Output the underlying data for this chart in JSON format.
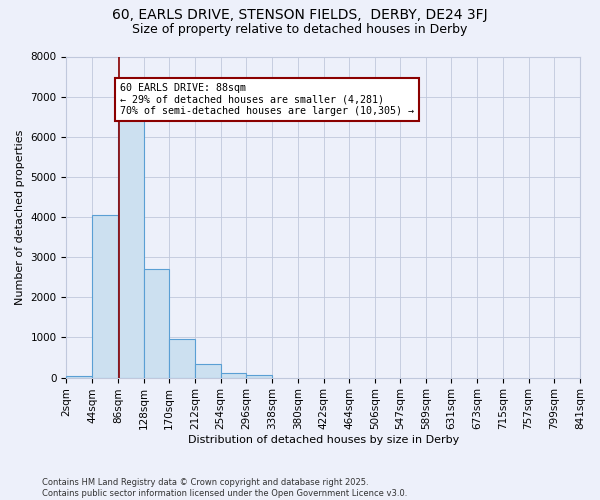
{
  "title1": "60, EARLS DRIVE, STENSON FIELDS,  DERBY, DE24 3FJ",
  "title2": "Size of property relative to detached houses in Derby",
  "xlabel": "Distribution of detached houses by size in Derby",
  "ylabel": "Number of detached properties",
  "bin_edges": [
    2,
    44,
    86,
    128,
    170,
    212,
    254,
    296,
    338,
    380,
    422,
    464,
    506,
    547,
    589,
    631,
    673,
    715,
    757,
    799,
    841
  ],
  "bar_heights": [
    50,
    4050,
    6680,
    2700,
    970,
    330,
    120,
    70,
    0,
    0,
    0,
    0,
    0,
    0,
    0,
    0,
    0,
    0,
    0,
    0
  ],
  "bar_facecolor": "#cce0f0",
  "bar_edgecolor": "#5a9fd4",
  "property_size": 88,
  "vline_color": "#8B0000",
  "annotation_text": "60 EARLS DRIVE: 88sqm\n← 29% of detached houses are smaller (4,281)\n70% of semi-detached houses are larger (10,305) →",
  "annotation_box_edgecolor": "#8B0000",
  "annotation_box_facecolor": "#ffffff",
  "ylim": [
    0,
    8000
  ],
  "yticks": [
    0,
    1000,
    2000,
    3000,
    4000,
    5000,
    6000,
    7000,
    8000
  ],
  "bg_color": "#edf0fa",
  "grid_color": "#c0c8dc",
  "footer": "Contains HM Land Registry data © Crown copyright and database right 2025.\nContains public sector information licensed under the Open Government Licence v3.0.",
  "title_fontsize": 10,
  "subtitle_fontsize": 9,
  "axis_label_fontsize": 8,
  "tick_fontsize": 7.5,
  "footer_fontsize": 6
}
